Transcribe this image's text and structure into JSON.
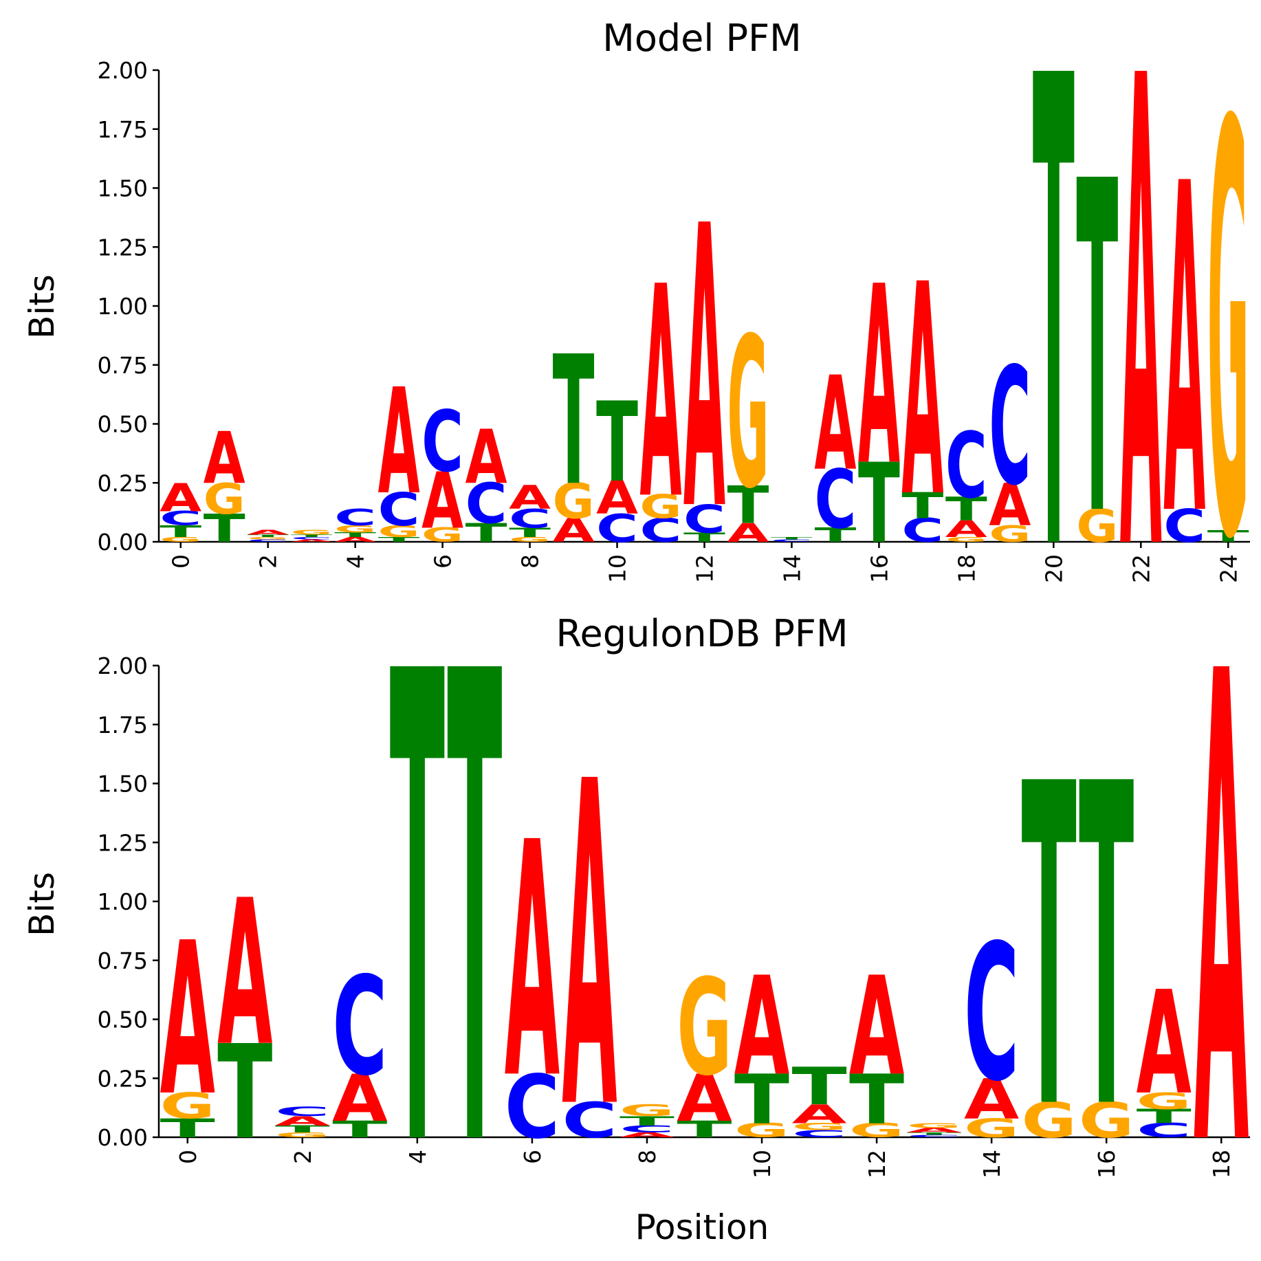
{
  "colors": {
    "A": "#ff0000",
    "C": "#0000ff",
    "G": "#ffa500",
    "T": "#008000"
  },
  "chart_data": [
    {
      "type": "sequence-logo",
      "title": "Model PFM",
      "ylabel": "Bits",
      "xlabel": "",
      "ylim": [
        0,
        2.0
      ],
      "yticks": [
        "0.00",
        "0.25",
        "0.50",
        "0.75",
        "1.00",
        "1.25",
        "1.50",
        "1.75",
        "2.00"
      ],
      "xticks": [
        "0",
        "2",
        "4",
        "6",
        "8",
        "10",
        "12",
        "14",
        "16",
        "18",
        "20",
        "22",
        "24"
      ],
      "positions": [
        {
          "x": 0,
          "A": 0.12,
          "C": 0.06,
          "G": 0.02,
          "T": 0.05
        },
        {
          "x": 1,
          "A": 0.22,
          "C": 0.0,
          "G": 0.13,
          "T": 0.12
        },
        {
          "x": 2,
          "A": 0.02,
          "C": 0.01,
          "G": 0.01,
          "T": 0.01
        },
        {
          "x": 3,
          "A": 0.01,
          "C": 0.01,
          "G": 0.02,
          "T": 0.01
        },
        {
          "x": 4,
          "A": 0.02,
          "C": 0.07,
          "G": 0.03,
          "T": 0.02
        },
        {
          "x": 5,
          "A": 0.45,
          "C": 0.14,
          "G": 0.05,
          "T": 0.02
        },
        {
          "x": 6,
          "A": 0.24,
          "C": 0.26,
          "G": 0.06,
          "T": 0.0
        },
        {
          "x": 7,
          "A": 0.23,
          "C": 0.17,
          "G": 0.0,
          "T": 0.08
        },
        {
          "x": 8,
          "A": 0.1,
          "C": 0.08,
          "G": 0.02,
          "T": 0.04
        },
        {
          "x": 9,
          "A": 0.1,
          "C": 0.0,
          "G": 0.15,
          "T": 0.55
        },
        {
          "x": 10,
          "A": 0.14,
          "C": 0.12,
          "G": 0.0,
          "T": 0.34
        },
        {
          "x": 11,
          "A": 0.9,
          "C": 0.1,
          "G": 0.1,
          "T": 0.0
        },
        {
          "x": 12,
          "A": 1.2,
          "C": 0.12,
          "G": 0.0,
          "T": 0.04
        },
        {
          "x": 13,
          "A": 0.08,
          "C": 0.0,
          "G": 0.64,
          "T": 0.16
        },
        {
          "x": 14,
          "A": 0.0,
          "C": 0.01,
          "G": 0.0,
          "T": 0.01
        },
        {
          "x": 15,
          "A": 0.4,
          "C": 0.25,
          "G": 0.0,
          "T": 0.06
        },
        {
          "x": 16,
          "A": 0.76,
          "C": 0.0,
          "G": 0.0,
          "T": 0.34
        },
        {
          "x": 17,
          "A": 0.9,
          "C": 0.1,
          "G": 0.0,
          "T": 0.11
        },
        {
          "x": 18,
          "A": 0.07,
          "C": 0.28,
          "G": 0.02,
          "T": 0.1
        },
        {
          "x": 19,
          "A": 0.18,
          "C": 0.5,
          "G": 0.07,
          "T": 0.0
        },
        {
          "x": 20,
          "A": 0.0,
          "C": 0.0,
          "G": 0.0,
          "T": 2.0
        },
        {
          "x": 21,
          "A": 0.0,
          "C": 0.0,
          "G": 0.14,
          "T": 1.41
        },
        {
          "x": 22,
          "A": 2.0,
          "C": 0.0,
          "G": 0.0,
          "T": 0.0
        },
        {
          "x": 23,
          "A": 1.4,
          "C": 0.14,
          "G": 0.0,
          "T": 0.0
        },
        {
          "x": 24,
          "A": 0.0,
          "C": 0.0,
          "G": 1.75,
          "T": 0.05
        }
      ]
    },
    {
      "type": "sequence-logo",
      "title": "RegulonDB PFM",
      "ylabel": "Bits",
      "xlabel": "Position",
      "ylim": [
        0,
        2.0
      ],
      "yticks": [
        "0.00",
        "0.25",
        "0.50",
        "0.75",
        "1.00",
        "1.25",
        "1.50",
        "1.75",
        "2.00"
      ],
      "xticks": [
        "0",
        "2",
        "4",
        "6",
        "8",
        "10",
        "12",
        "14",
        "16",
        "18"
      ],
      "positions": [
        {
          "x": 0,
          "A": 0.65,
          "C": 0.0,
          "G": 0.11,
          "T": 0.08
        },
        {
          "x": 1,
          "A": 0.62,
          "C": 0.0,
          "G": 0.0,
          "T": 0.4
        },
        {
          "x": 2,
          "A": 0.04,
          "C": 0.04,
          "G": 0.02,
          "T": 0.03
        },
        {
          "x": 3,
          "A": 0.2,
          "C": 0.42,
          "G": 0.0,
          "T": 0.07
        },
        {
          "x": 4,
          "A": 0.0,
          "C": 0.0,
          "G": 0.0,
          "T": 2.0
        },
        {
          "x": 5,
          "A": 0.0,
          "C": 0.0,
          "G": 0.0,
          "T": 2.0
        },
        {
          "x": 6,
          "A": 1.0,
          "C": 0.27,
          "G": 0.0,
          "T": 0.0
        },
        {
          "x": 7,
          "A": 1.38,
          "C": 0.15,
          "G": 0.0,
          "T": 0.0
        },
        {
          "x": 8,
          "A": 0.02,
          "C": 0.03,
          "G": 0.05,
          "T": 0.04
        },
        {
          "x": 9,
          "A": 0.2,
          "C": 0.0,
          "G": 0.41,
          "T": 0.07
        },
        {
          "x": 10,
          "A": 0.42,
          "C": 0.0,
          "G": 0.06,
          "T": 0.21
        },
        {
          "x": 11,
          "A": 0.08,
          "C": 0.03,
          "G": 0.03,
          "T": 0.16
        },
        {
          "x": 12,
          "A": 0.42,
          "C": 0.0,
          "G": 0.06,
          "T": 0.21
        },
        {
          "x": 13,
          "A": 0.02,
          "C": 0.01,
          "G": 0.02,
          "T": 0.01
        },
        {
          "x": 14,
          "A": 0.17,
          "C": 0.58,
          "G": 0.08,
          "T": 0.0
        },
        {
          "x": 15,
          "A": 0.0,
          "C": 0.0,
          "G": 0.15,
          "T": 1.37
        },
        {
          "x": 16,
          "A": 0.0,
          "C": 0.0,
          "G": 0.15,
          "T": 1.37
        },
        {
          "x": 17,
          "A": 0.44,
          "C": 0.06,
          "G": 0.07,
          "T": 0.06
        },
        {
          "x": 18,
          "A": 2.0,
          "C": 0.0,
          "G": 0.0,
          "T": 0.0
        }
      ]
    }
  ]
}
